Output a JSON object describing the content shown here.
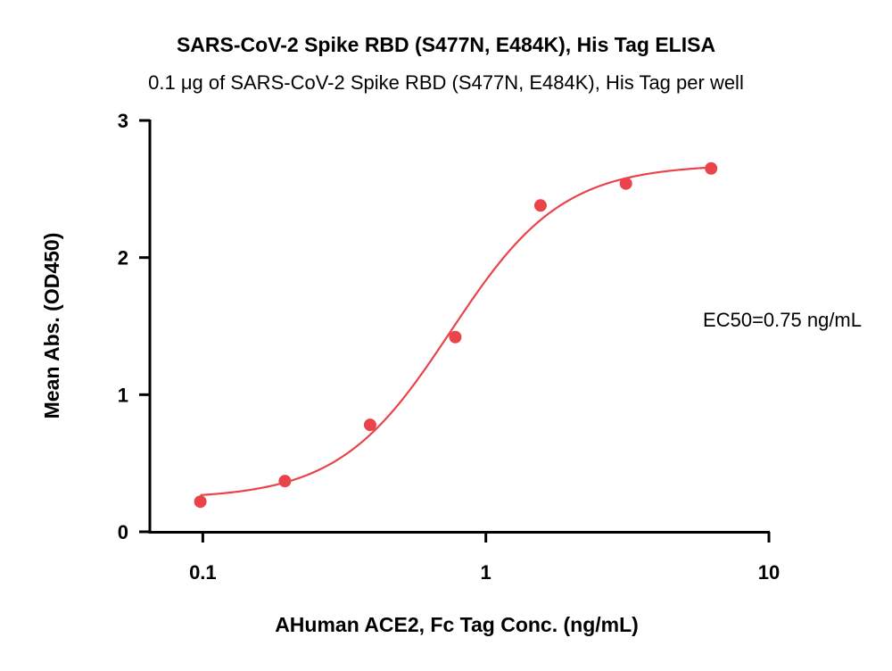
{
  "chart_data": {
    "type": "scatter",
    "title": "SARS-CoV-2 Spike RBD (S477N, E484K), His Tag ELISA",
    "subtitle": "0.1 μg of SARS-CoV-2 Spike RBD (S477N, E484K), His Tag per well",
    "xlabel": "AHuman ACE2, Fc Tag Conc. (ng/mL)",
    "ylabel": "Mean Abs. (OD450)",
    "xscale": "log",
    "xlim": [
      0.065,
      10
    ],
    "ylim": [
      0,
      3
    ],
    "x_ticks": [
      0.1,
      1,
      10
    ],
    "x_tick_labels": [
      "0.1",
      "1",
      "10"
    ],
    "y_ticks": [
      0,
      1,
      2,
      3
    ],
    "y_tick_labels": [
      "0",
      "1",
      "2",
      "3"
    ],
    "grid": false,
    "series": [
      {
        "x": [
          0.098,
          0.195,
          0.39,
          0.78,
          1.56,
          3.125,
          6.25
        ],
        "y": [
          0.22,
          0.37,
          0.78,
          1.42,
          2.38,
          2.54,
          2.65
        ],
        "color": "#e8444a",
        "marker": "circle"
      }
    ],
    "fit_curve": {
      "model": "4PL",
      "bottom": 0.24,
      "top": 2.68,
      "ec50": 0.75,
      "hill": 2.2,
      "color": "#e8444a"
    },
    "annotations": [
      {
        "text": "EC50=0.75 ng/mL"
      }
    ]
  }
}
